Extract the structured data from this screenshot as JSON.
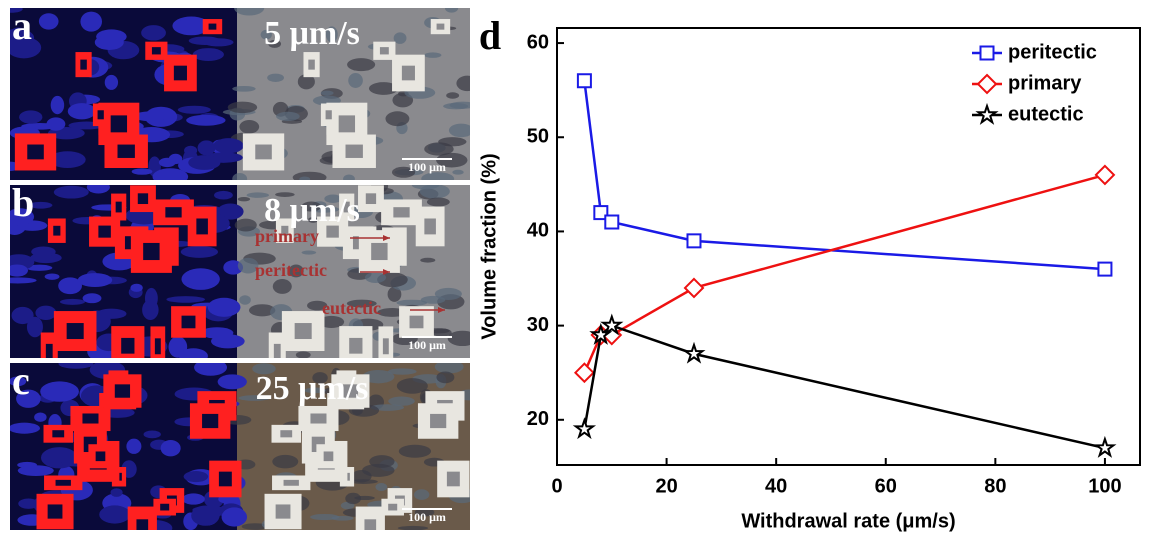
{
  "chart_data": {
    "type": "line",
    "panel_label": "d",
    "x_label": "Withdrawal rate (μm/s)",
    "y_label": "Volume  fraction (%)",
    "xlim": [
      0,
      106.4
    ],
    "ylim": [
      15.2,
      61.6
    ],
    "xticks": [
      0,
      20,
      40,
      60,
      80,
      100
    ],
    "yticks": [
      20,
      30,
      40,
      50,
      60
    ],
    "x": [
      5,
      8,
      10,
      25,
      100
    ],
    "legend": "upper right",
    "series": [
      {
        "name": "peritectic",
        "color": "#1a1ae6",
        "marker": "square",
        "values": [
          56,
          42,
          41,
          39,
          36
        ]
      },
      {
        "name": "primary",
        "color": "#ee1111",
        "marker": "diamond",
        "values": [
          25,
          29,
          29,
          34,
          46
        ]
      },
      {
        "name": "eutectic",
        "color": "#000000",
        "marker": "star",
        "values": [
          19,
          29,
          30,
          27,
          17
        ]
      }
    ]
  },
  "panels": [
    {
      "label": "a",
      "rate": "5 μm/s",
      "scale_bar": "100 μm"
    },
    {
      "label": "b",
      "rate": "8 μm/s",
      "scale_bar": "100 μm",
      "annotations": [
        "primary",
        "peritectic",
        "eutectic"
      ]
    },
    {
      "label": "c",
      "rate": "25 μm/s",
      "scale_bar": "100 μm"
    }
  ]
}
